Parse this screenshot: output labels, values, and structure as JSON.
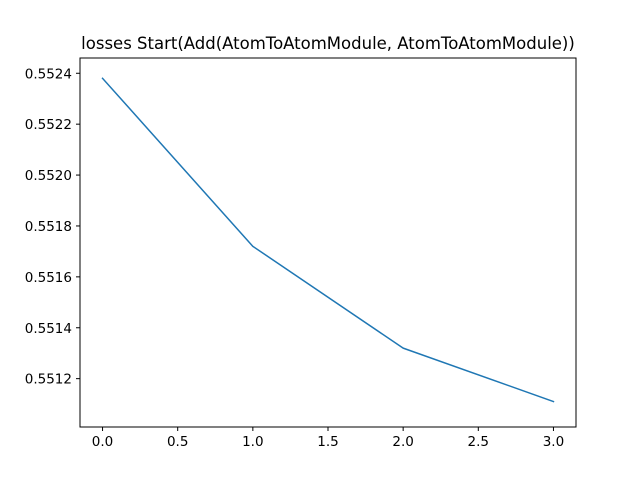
{
  "chart_data": {
    "type": "line",
    "title": "losses Start(Add(AtomToAtomModule, AtomToAtomModule))",
    "xlabel": "",
    "ylabel": "",
    "xlim": [
      -0.15,
      3.15
    ],
    "ylim": [
      0.55101,
      0.55246
    ],
    "xticks": [
      0.0,
      0.5,
      1.0,
      1.5,
      2.0,
      2.5,
      3.0
    ],
    "xtick_labels": [
      "0.0",
      "0.5",
      "1.0",
      "1.5",
      "2.0",
      "2.5",
      "3.0"
    ],
    "yticks": [
      0.5512,
      0.5514,
      0.5516,
      0.5518,
      0.552,
      0.5522,
      0.5524
    ],
    "ytick_labels": [
      "0.5512",
      "0.5514",
      "0.5516",
      "0.5518",
      "0.5520",
      "0.5522",
      "0.5524"
    ],
    "grid": false,
    "series": [
      {
        "color": "#1f77b4",
        "x": [
          0,
          1,
          2,
          3
        ],
        "y": [
          0.55238,
          0.55172,
          0.55132,
          0.55111
        ]
      }
    ]
  }
}
